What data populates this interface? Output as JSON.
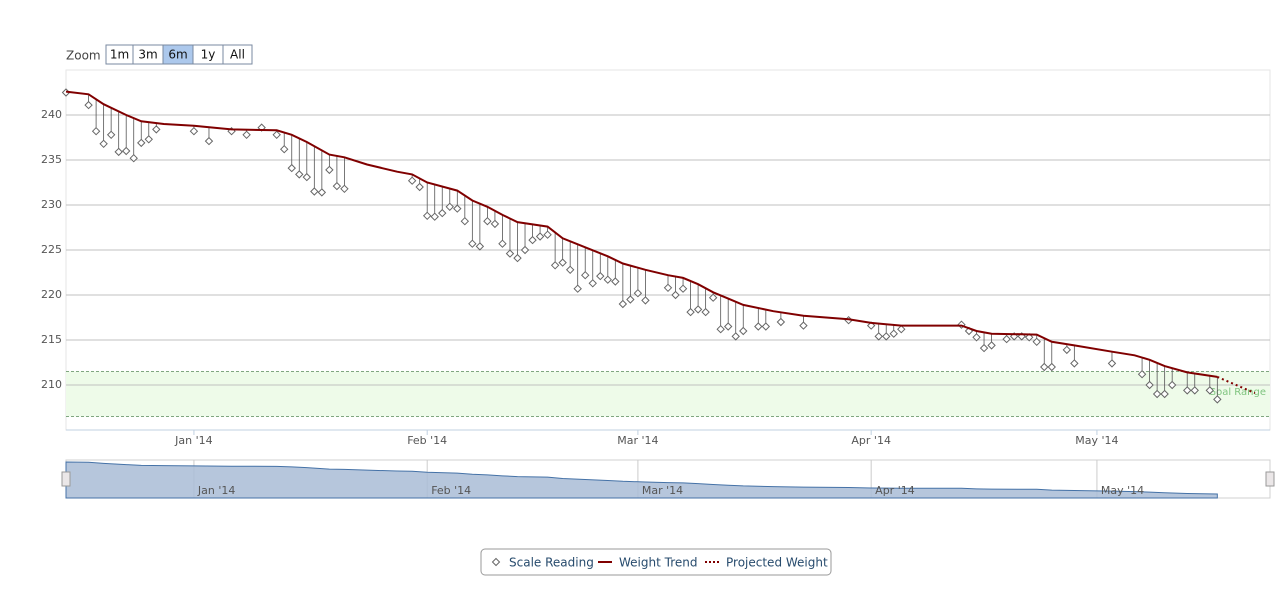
{
  "chart_data": {
    "type": "line",
    "range_selector": {
      "label": "Zoom",
      "buttons": [
        "1m",
        "3m",
        "6m",
        "1y",
        "All"
      ],
      "selected": 2
    },
    "xlim": [
      0,
      160
    ],
    "xticks": [
      {
        "value": 17,
        "label": "Jan '14"
      },
      {
        "value": 48,
        "label": "Feb '14"
      },
      {
        "value": 76,
        "label": "Mar '14"
      },
      {
        "value": 107,
        "label": "Apr '14"
      },
      {
        "value": 137,
        "label": "May '14"
      }
    ],
    "ylim": [
      205,
      245
    ],
    "yticks": [
      210,
      215,
      220,
      225,
      230,
      235,
      240
    ],
    "grid": true,
    "plot_bands": [
      {
        "from": 206.5,
        "to": 211.5,
        "label": "Goal Range",
        "color": "#eefbe9",
        "edge_color": "#5a8a5a",
        "label_color": "#7fc47f"
      }
    ],
    "navigator": true,
    "legend": "bottom",
    "series": [
      {
        "name": "Scale Reading",
        "type": "scatter",
        "color": "#666666",
        "x": [
          0,
          3,
          4,
          5,
          6,
          7,
          8,
          9,
          10,
          11,
          12,
          17,
          19,
          22,
          24,
          26,
          28,
          29,
          30,
          31,
          32,
          33,
          34,
          35,
          36,
          37,
          46,
          47,
          48,
          49,
          50,
          51,
          52,
          53,
          54,
          55,
          56,
          57,
          58,
          59,
          60,
          61,
          62,
          63,
          64,
          65,
          66,
          67,
          68,
          69,
          70,
          71,
          72,
          73,
          74,
          75,
          76,
          77,
          80,
          81,
          82,
          83,
          84,
          85,
          86,
          87,
          88,
          89,
          90,
          92,
          93,
          95,
          98,
          104,
          107,
          108,
          109,
          110,
          111,
          119,
          120,
          121,
          122,
          123,
          125,
          126,
          127,
          128,
          129,
          130,
          131,
          133,
          134,
          139,
          143,
          144,
          145,
          146,
          147,
          149,
          150,
          152,
          153
        ],
        "values": [
          242.5,
          241.1,
          238.2,
          236.8,
          237.8,
          235.9,
          236,
          235.2,
          236.9,
          237.3,
          238.4,
          238.2,
          237.1,
          238.2,
          237.8,
          238.6,
          237.8,
          236.2,
          234.1,
          233.4,
          233.1,
          231.5,
          231.4,
          233.9,
          232.1,
          231.8,
          232.7,
          232,
          228.8,
          228.7,
          229.1,
          229.8,
          229.6,
          228.2,
          225.7,
          225.4,
          228.2,
          227.9,
          225.7,
          224.6,
          224.1,
          225,
          226.1,
          226.5,
          226.7,
          223.3,
          223.6,
          222.8,
          220.7,
          222.2,
          221.3,
          222.1,
          221.7,
          221.5,
          219,
          219.5,
          220.2,
          219.4,
          220.8,
          220,
          220.7,
          218.1,
          218.4,
          218.1,
          219.7,
          216.2,
          216.5,
          215.4,
          216,
          216.5,
          216.5,
          217,
          216.6,
          217.2,
          216.6,
          215.4,
          215.4,
          215.7,
          216.2,
          216.7,
          216,
          215.3,
          214.1,
          214.4,
          215.1,
          215.4,
          215.4,
          215.3,
          214.8,
          212,
          212,
          213.9,
          212.4,
          212.4,
          211.2,
          210,
          209,
          209,
          210,
          209.4,
          209.4,
          209.4,
          208.4
        ]
      },
      {
        "name": "Weight Trend",
        "type": "line",
        "color": "#800000",
        "x": [
          0,
          3,
          5,
          8,
          10,
          13,
          17,
          22,
          28,
          30,
          32,
          35,
          37,
          40,
          44,
          46,
          48,
          52,
          54,
          56,
          58,
          60,
          64,
          66,
          69,
          72,
          74,
          77,
          80,
          82,
          84,
          86,
          88,
          90,
          94,
          98,
          104,
          107,
          111,
          119,
          121,
          123,
          129,
          131,
          134,
          139,
          142,
          144,
          146,
          149,
          153
        ],
        "values": [
          242.6,
          242.3,
          241.2,
          240,
          239.3,
          239,
          238.8,
          238.4,
          238.3,
          237.8,
          237,
          235.6,
          235.3,
          234.5,
          233.7,
          233.4,
          232.5,
          231.6,
          230.5,
          229.8,
          228.9,
          228.1,
          227.6,
          226.3,
          225.3,
          224.3,
          223.5,
          222.8,
          222.2,
          221.9,
          221.2,
          220.3,
          219.6,
          218.9,
          218.2,
          217.7,
          217.3,
          216.9,
          216.6,
          216.6,
          216,
          215.7,
          215.6,
          214.8,
          214.4,
          213.7,
          213.3,
          212.8,
          212.1,
          211.4,
          210.9
        ]
      },
      {
        "name": "Projected Weight",
        "type": "dashed",
        "color": "#800000",
        "x": [
          153,
          158
        ],
        "values": [
          210.9,
          209.1
        ]
      }
    ]
  }
}
